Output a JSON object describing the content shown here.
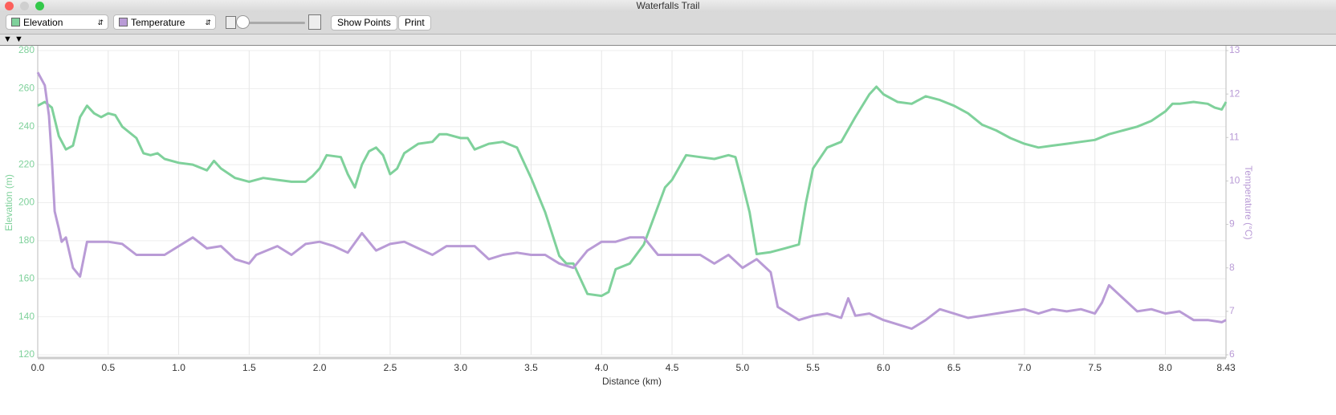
{
  "window": {
    "title": "Waterfalls Trail"
  },
  "toolbar": {
    "buttons": [
      "Show Points",
      "Print"
    ]
  },
  "chart_data": {
    "type": "line",
    "xlabel": "Distance (km)",
    "ylabel": "Elevation (m)",
    "y2label": "Temperature (°C)",
    "xlim": [
      0,
      8.43
    ],
    "ylim": [
      120,
      280
    ],
    "y2lim": [
      6,
      13
    ],
    "xticks": [
      {
        "value": 0,
        "label": "0.0"
      },
      0.5,
      {
        "value": 1,
        "label": "1.0"
      },
      1.5,
      {
        "value": 2,
        "label": "2.0"
      },
      2.5,
      {
        "value": 3,
        "label": "3.0"
      },
      3.5,
      {
        "value": 4,
        "label": "4.0"
      },
      4.5,
      {
        "value": 5,
        "label": "5.0"
      },
      5.5,
      {
        "value": 6,
        "label": "6.0"
      },
      6.5,
      {
        "value": 7,
        "label": "7.0"
      },
      7.5,
      {
        "value": 8,
        "label": "8.0"
      },
      8.43
    ],
    "yticks": [
      120,
      140,
      160,
      180,
      200,
      220,
      240,
      260,
      280
    ],
    "y2ticks": [
      6,
      7,
      8,
      9,
      10,
      11,
      12,
      13
    ],
    "grid": true,
    "series": [
      {
        "name": "Elevation",
        "color": "#7fd19b",
        "x": [
          0,
          0.05,
          0.1,
          0.15,
          0.2,
          0.25,
          0.3,
          0.35,
          0.4,
          0.45,
          0.5,
          0.55,
          0.6,
          0.7,
          0.75,
          0.8,
          0.85,
          0.9,
          1.0,
          1.1,
          1.2,
          1.25,
          1.3,
          1.4,
          1.5,
          1.6,
          1.7,
          1.8,
          1.9,
          1.95,
          2.0,
          2.05,
          2.15,
          2.2,
          2.25,
          2.3,
          2.35,
          2.4,
          2.45,
          2.5,
          2.55,
          2.6,
          2.7,
          2.8,
          2.85,
          2.9,
          3.0,
          3.05,
          3.1,
          3.2,
          3.3,
          3.4,
          3.5,
          3.6,
          3.7,
          3.75,
          3.8,
          3.85,
          3.9,
          4.0,
          4.05,
          4.1,
          4.2,
          4.3,
          4.4,
          4.45,
          4.5,
          4.6,
          4.7,
          4.8,
          4.9,
          4.95,
          5.0,
          5.05,
          5.1,
          5.2,
          5.3,
          5.4,
          5.45,
          5.5,
          5.6,
          5.7,
          5.8,
          5.9,
          5.95,
          6.0,
          6.1,
          6.2,
          6.3,
          6.4,
          6.5,
          6.6,
          6.7,
          6.8,
          6.9,
          7.0,
          7.1,
          7.2,
          7.3,
          7.4,
          7.5,
          7.6,
          7.7,
          7.8,
          7.9,
          8.0,
          8.05,
          8.1,
          8.2,
          8.3,
          8.35,
          8.4,
          8.43
        ],
        "values": [
          251,
          253,
          250,
          235,
          228,
          230,
          245,
          251,
          247,
          245,
          247,
          246,
          240,
          234,
          226,
          225,
          226,
          223,
          221,
          220,
          217,
          222,
          218,
          213,
          211,
          213,
          212,
          211,
          211,
          214,
          218,
          225,
          224,
          215,
          208,
          220,
          227,
          229,
          225,
          215,
          218,
          226,
          231,
          232,
          236,
          236,
          234,
          234,
          228,
          231,
          232,
          229,
          213,
          195,
          172,
          168,
          168,
          160,
          152,
          151,
          153,
          165,
          168,
          178,
          198,
          208,
          212,
          225,
          224,
          223,
          225,
          224,
          210,
          195,
          173,
          174,
          176,
          178,
          200,
          218,
          229,
          232,
          245,
          257,
          261,
          257,
          253,
          252,
          256,
          254,
          251,
          247,
          241,
          238,
          234,
          231,
          229,
          230,
          231,
          232,
          233,
          236,
          238,
          240,
          243,
          248,
          252,
          252,
          253,
          252,
          250,
          249,
          253
        ]
      },
      {
        "name": "Temperature",
        "color": "#b99bd6",
        "axis": "y2",
        "x": [
          0,
          0.05,
          0.08,
          0.1,
          0.12,
          0.15,
          0.17,
          0.2,
          0.25,
          0.3,
          0.35,
          0.4,
          0.5,
          0.6,
          0.7,
          0.9,
          1.0,
          1.1,
          1.2,
          1.3,
          1.4,
          1.5,
          1.55,
          1.7,
          1.8,
          1.9,
          2.0,
          2.1,
          2.2,
          2.3,
          2.4,
          2.5,
          2.6,
          2.7,
          2.8,
          2.9,
          3.0,
          3.1,
          3.2,
          3.3,
          3.4,
          3.5,
          3.6,
          3.7,
          3.8,
          3.9,
          4.0,
          4.1,
          4.2,
          4.3,
          4.4,
          4.5,
          4.6,
          4.7,
          4.8,
          4.9,
          5.0,
          5.1,
          5.2,
          5.25,
          5.3,
          5.4,
          5.5,
          5.6,
          5.7,
          5.75,
          5.8,
          5.9,
          6.0,
          6.1,
          6.2,
          6.3,
          6.4,
          6.5,
          6.6,
          6.7,
          6.8,
          6.9,
          7.0,
          7.1,
          7.2,
          7.3,
          7.4,
          7.5,
          7.55,
          7.6,
          7.7,
          7.8,
          7.9,
          8.0,
          8.1,
          8.2,
          8.3,
          8.4,
          8.43
        ],
        "values": [
          12.5,
          12.2,
          11.5,
          10.5,
          9.3,
          8.9,
          8.6,
          8.7,
          8.0,
          7.8,
          8.6,
          8.6,
          8.6,
          8.55,
          8.3,
          8.3,
          8.5,
          8.7,
          8.45,
          8.5,
          8.2,
          8.1,
          8.3,
          8.5,
          8.3,
          8.55,
          8.6,
          8.5,
          8.35,
          8.8,
          8.4,
          8.55,
          8.6,
          8.45,
          8.3,
          8.5,
          8.5,
          8.5,
          8.2,
          8.3,
          8.35,
          8.3,
          8.3,
          8.1,
          8.0,
          8.4,
          8.6,
          8.6,
          8.7,
          8.7,
          8.3,
          8.3,
          8.3,
          8.3,
          8.1,
          8.3,
          8.0,
          8.2,
          7.9,
          7.1,
          7.0,
          6.8,
          6.9,
          6.95,
          6.85,
          7.3,
          6.9,
          6.95,
          6.8,
          6.7,
          6.6,
          6.8,
          7.05,
          6.95,
          6.85,
          6.9,
          6.95,
          7.0,
          7.05,
          6.95,
          7.05,
          7.0,
          7.05,
          6.95,
          7.2,
          7.6,
          7.3,
          7.0,
          7.05,
          6.95,
          7.0,
          6.8,
          6.8,
          6.75,
          6.8
        ]
      }
    ]
  }
}
